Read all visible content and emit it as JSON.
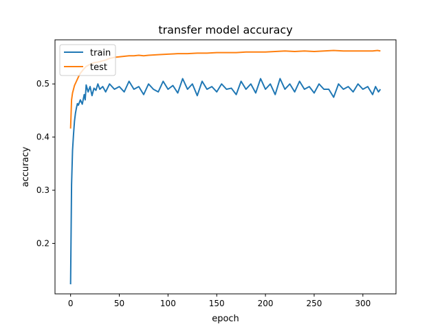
{
  "chart_data": {
    "type": "line",
    "title": "transfer model accuracy",
    "xlabel": "epoch",
    "ylabel": "accuracy",
    "xlim": [
      -16,
      334
    ],
    "ylim": [
      0.105,
      0.583
    ],
    "x_ticks": [
      0,
      50,
      100,
      150,
      200,
      250,
      300
    ],
    "x_tick_labels": [
      "0",
      "50",
      "100",
      "150",
      "200",
      "250",
      "300"
    ],
    "y_ticks": [
      0.2,
      0.3,
      0.4,
      0.5
    ],
    "y_tick_labels": [
      "0.2",
      "0.3",
      "0.4",
      "0.5"
    ],
    "grid": false,
    "legend": {
      "position": "top-left",
      "entries": [
        "train",
        "test"
      ]
    },
    "series": [
      {
        "name": "train",
        "color": "#1f77b4",
        "x": [
          0,
          1,
          2,
          3,
          4,
          5,
          6,
          7,
          8,
          10,
          12,
          14,
          15,
          16,
          18,
          20,
          22,
          24,
          26,
          28,
          30,
          33,
          36,
          40,
          45,
          50,
          55,
          60,
          65,
          70,
          75,
          80,
          85,
          90,
          95,
          100,
          105,
          110,
          115,
          120,
          125,
          130,
          135,
          140,
          145,
          150,
          155,
          160,
          165,
          170,
          175,
          180,
          185,
          190,
          195,
          200,
          205,
          210,
          215,
          220,
          225,
          230,
          235,
          240,
          245,
          250,
          255,
          260,
          265,
          270,
          275,
          280,
          285,
          290,
          295,
          300,
          305,
          310,
          313,
          316,
          318
        ],
        "y": [
          0.123,
          0.31,
          0.375,
          0.405,
          0.43,
          0.445,
          0.455,
          0.463,
          0.46,
          0.47,
          0.462,
          0.48,
          0.47,
          0.498,
          0.485,
          0.495,
          0.478,
          0.492,
          0.488,
          0.5,
          0.49,
          0.495,
          0.485,
          0.5,
          0.49,
          0.495,
          0.485,
          0.505,
          0.49,
          0.495,
          0.48,
          0.5,
          0.49,
          0.485,
          0.505,
          0.49,
          0.497,
          0.483,
          0.51,
          0.49,
          0.5,
          0.478,
          0.505,
          0.49,
          0.495,
          0.485,
          0.5,
          0.49,
          0.492,
          0.48,
          0.505,
          0.49,
          0.5,
          0.483,
          0.51,
          0.49,
          0.5,
          0.48,
          0.51,
          0.49,
          0.5,
          0.485,
          0.505,
          0.49,
          0.495,
          0.483,
          0.5,
          0.49,
          0.49,
          0.475,
          0.5,
          0.49,
          0.495,
          0.485,
          0.5,
          0.49,
          0.495,
          0.48,
          0.495,
          0.485,
          0.49
        ]
      },
      {
        "name": "test",
        "color": "#ff7f0e",
        "x": [
          0,
          1,
          2,
          3,
          4,
          6,
          8,
          10,
          13,
          16,
          20,
          24,
          28,
          32,
          36,
          40,
          45,
          50,
          55,
          60,
          65,
          70,
          75,
          80,
          90,
          100,
          110,
          120,
          130,
          140,
          150,
          160,
          170,
          180,
          190,
          200,
          210,
          220,
          230,
          240,
          250,
          260,
          270,
          280,
          290,
          300,
          310,
          315,
          318
        ],
        "y": [
          0.416,
          0.47,
          0.483,
          0.49,
          0.497,
          0.505,
          0.513,
          0.52,
          0.527,
          0.533,
          0.537,
          0.54,
          0.541,
          0.543,
          0.545,
          0.548,
          0.55,
          0.551,
          0.552,
          0.553,
          0.553,
          0.554,
          0.553,
          0.554,
          0.555,
          0.556,
          0.557,
          0.557,
          0.558,
          0.558,
          0.559,
          0.559,
          0.559,
          0.56,
          0.56,
          0.56,
          0.561,
          0.562,
          0.561,
          0.562,
          0.561,
          0.562,
          0.563,
          0.562,
          0.562,
          0.562,
          0.562,
          0.563,
          0.562
        ]
      }
    ]
  }
}
